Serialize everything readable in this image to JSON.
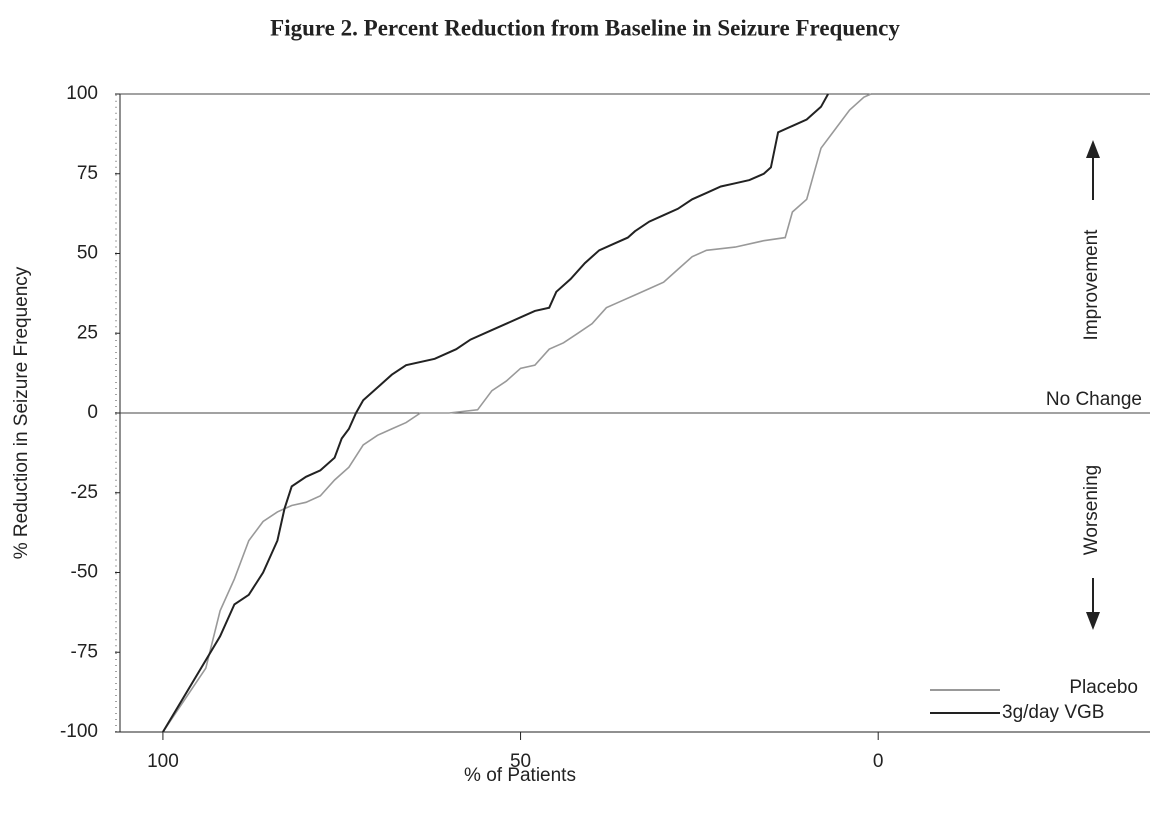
{
  "chart_data": {
    "type": "line",
    "title": "Figure 2. Percent Reduction from Baseline in Seizure Frequency",
    "x_label": "% of Patients",
    "y_label": "% Reduction in Seizure Frequency",
    "xlim": [
      106,
      -38
    ],
    "ylim": [
      -100,
      100
    ],
    "xticks": [
      100,
      50,
      0
    ],
    "yticks": [
      -100,
      -75,
      -50,
      -25,
      0,
      25,
      50,
      75,
      100
    ],
    "grid": false,
    "legend": "lower right",
    "annotations": {
      "no_change": "No Change",
      "improvement": "Improvement",
      "worsening": "Worsening"
    },
    "series": [
      {
        "name": "Placebo",
        "color": "#999999",
        "x": [
          100,
          94,
          92,
          90,
          88,
          86,
          84,
          82,
          80,
          78,
          76,
          74,
          72,
          70,
          68,
          66,
          64,
          60,
          56,
          54,
          52,
          50,
          48,
          46,
          44,
          42,
          40,
          38,
          36,
          34,
          32,
          30,
          28,
          26,
          24,
          20,
          16,
          13,
          12,
          10,
          9,
          8,
          6,
          4,
          2,
          1
        ],
        "values": [
          -100,
          -80,
          -62,
          -52,
          -40,
          -34,
          -31,
          -29,
          -28,
          -26,
          -21,
          -17,
          -10,
          -7,
          -5,
          -3,
          0,
          0,
          1,
          7,
          10,
          14,
          15,
          20,
          22,
          25,
          28,
          33,
          35,
          37,
          39,
          41,
          45,
          49,
          51,
          52,
          54,
          55,
          63,
          67,
          75,
          83,
          89,
          95,
          99,
          100
        ]
      },
      {
        "name": "3g/day VGB",
        "color": "#222222",
        "x": [
          100,
          92,
          90,
          88,
          86,
          84,
          83,
          82,
          80,
          78,
          76,
          75,
          74,
          73,
          72,
          70,
          68,
          66,
          62,
          59,
          57,
          54,
          52,
          50,
          48,
          46,
          45,
          43,
          41,
          39,
          37,
          35,
          34,
          32,
          30,
          28,
          26,
          24,
          22,
          20,
          18,
          16,
          15,
          14,
          12,
          10,
          8,
          7
        ],
        "values": [
          -100,
          -70,
          -60,
          -57,
          -50,
          -40,
          -30,
          -23,
          -20,
          -18,
          -14,
          -8,
          -5,
          0,
          4,
          8,
          12,
          15,
          17,
          20,
          23,
          26,
          28,
          30,
          32,
          33,
          38,
          42,
          47,
          51,
          53,
          55,
          57,
          60,
          62,
          64,
          67,
          69,
          71,
          72,
          73,
          75,
          77,
          88,
          90,
          92,
          96,
          100
        ]
      }
    ]
  }
}
